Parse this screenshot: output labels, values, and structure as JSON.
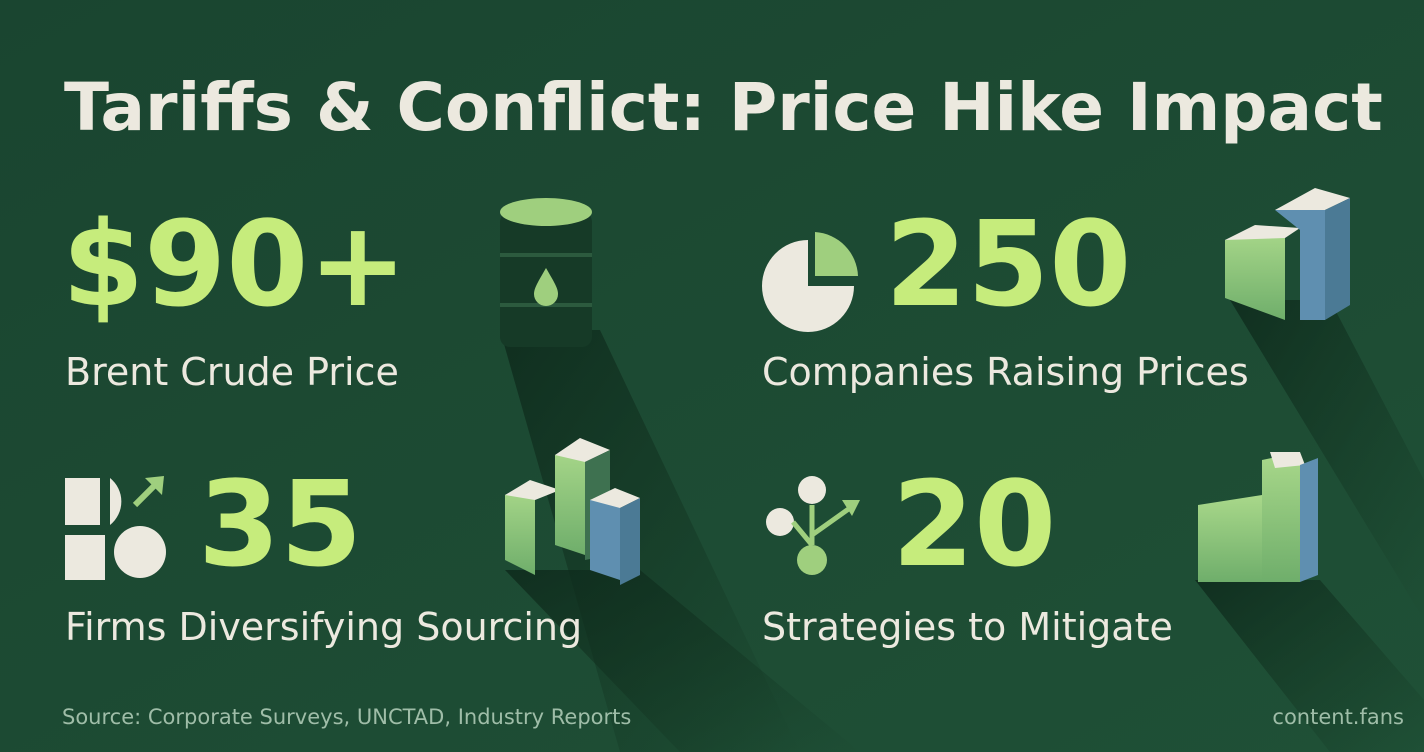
{
  "header": {
    "title": "Tariffs & Conflict: Price Hike Impact"
  },
  "stats": [
    {
      "value": "$90+",
      "label": "Brent Crude Price"
    },
    {
      "value": "250",
      "label": "Companies Raising Prices"
    },
    {
      "value": "35",
      "label": "Firms Diversifying Sourcing"
    },
    {
      "value": "20",
      "label": "Strategies to Mitigate"
    }
  ],
  "footer": {
    "source": "Source: Corporate Surveys, UNCTAD, Industry Reports",
    "brand": "content.fans"
  }
}
